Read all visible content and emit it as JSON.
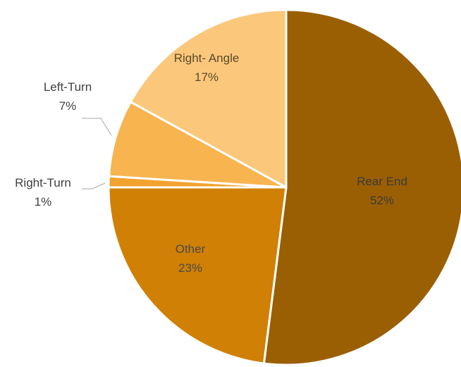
{
  "chart_data": {
    "type": "pie",
    "title": "",
    "slices": [
      {
        "label": "Rear End",
        "value": 52,
        "display": "52%",
        "color": "#9b5f03",
        "label_color": "#3a3a3a"
      },
      {
        "label": "Other",
        "value": 23,
        "display": "23%",
        "color": "#d08005",
        "label_color": "#4a4a4a"
      },
      {
        "label": "Right-Turn",
        "value": 1,
        "display": "1%",
        "color": "#f2a32e",
        "label_color": "#404040"
      },
      {
        "label": "Left-Turn",
        "value": 7,
        "display": "7%",
        "color": "#f7b44f",
        "label_color": "#404040"
      },
      {
        "label": "Right- Angle",
        "value": 17,
        "display": "17%",
        "color": "#fbc77b",
        "label_color": "#5a4a2a"
      }
    ],
    "start_angle_deg": 0,
    "direction": "clockwise",
    "legend": "none",
    "data_labels": "category-and-percent"
  }
}
